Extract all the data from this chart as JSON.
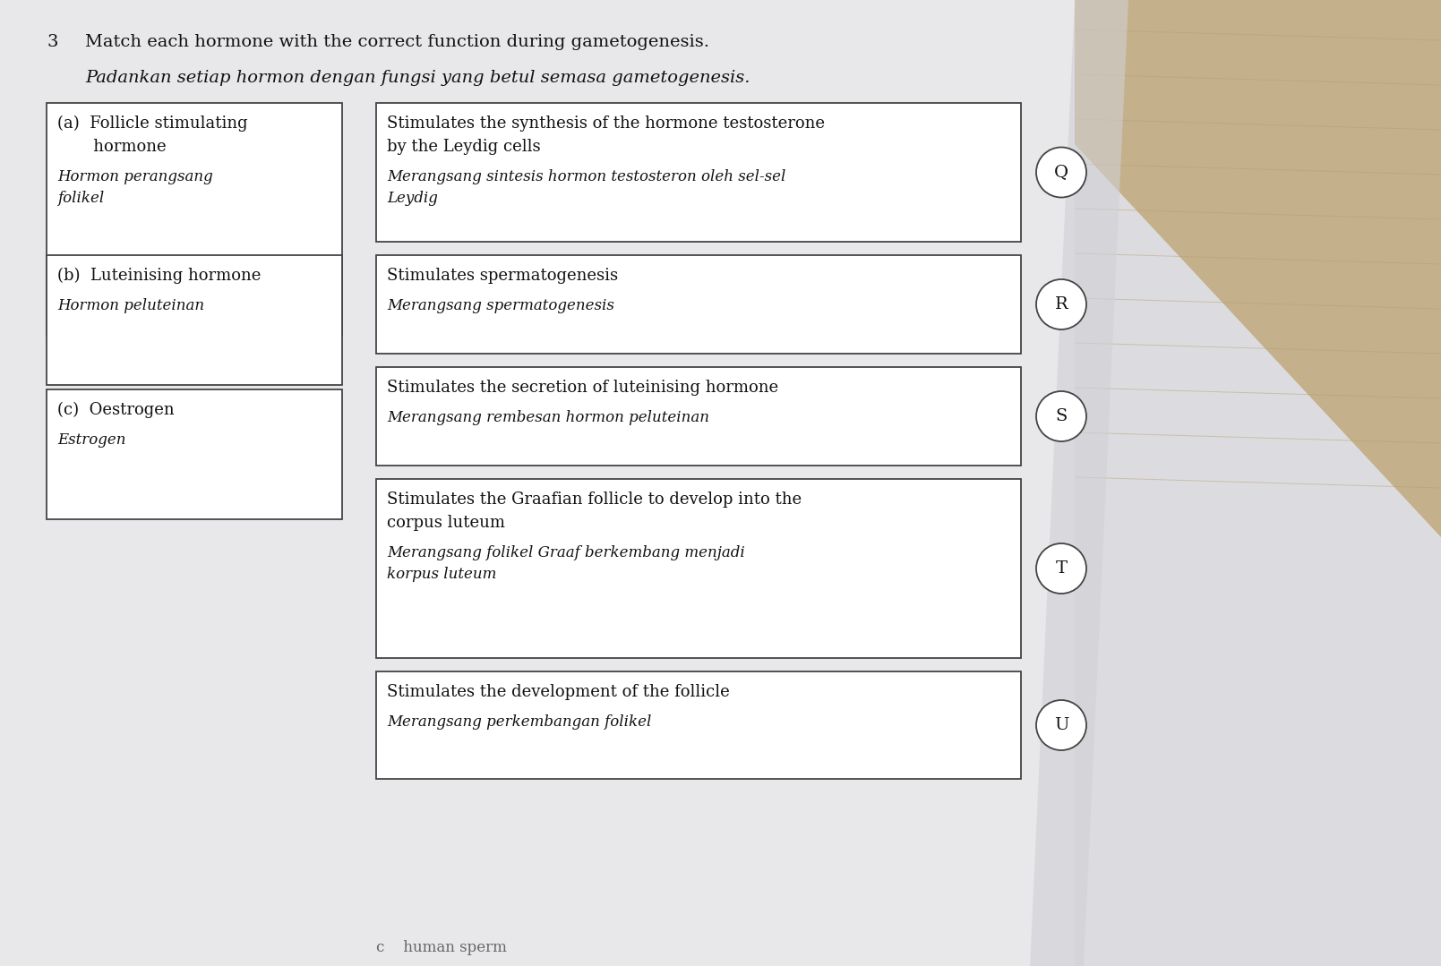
{
  "title_number": "3",
  "title_en": "Match each hormone with the correct function during gametogenesis.",
  "title_my": "Padankan setiap hormon dengan fungsi yang betul semasa gametogenesis.",
  "bg_paper": "#e8e8ec",
  "bg_wood": "#c8b898",
  "box_edge": "#444444",
  "left_boxes": [
    {
      "label_en_lines": [
        "(a)  Follicle stimulating",
        "       hormone"
      ],
      "label_my_lines": [
        "Hormon perangsang",
        "folikel"
      ]
    },
    {
      "label_en_lines": [
        "(b)  Luteinising hormone"
      ],
      "label_my_lines": [
        "Hormon peluteinan"
      ]
    },
    {
      "label_en_lines": [
        "(c)  Oestrogen"
      ],
      "label_my_lines": [
        "Estrogen"
      ]
    }
  ],
  "right_boxes": [
    {
      "text_en_lines": [
        "Stimulates the synthesis of the hormone testosterone",
        "by the Leydig cells"
      ],
      "text_my_lines": [
        "Merangsang sintesis hormon testosteron oleh sel-sel",
        "Leydig"
      ],
      "letter": "Q"
    },
    {
      "text_en_lines": [
        "Stimulates spermatogenesis"
      ],
      "text_my_lines": [
        "Merangsang spermatogenesis"
      ],
      "letter": "R"
    },
    {
      "text_en_lines": [
        "Stimulates the secretion of luteinising hormone"
      ],
      "text_my_lines": [
        "Merangsang rembesan hormon peluteinan"
      ],
      "letter": "S"
    },
    {
      "text_en_lines": [
        "Stimulates the Graafian follicle to develop into the",
        "corpus luteum"
      ],
      "text_my_lines": [
        "Merangsang folikel Graaf berkembang menjadi",
        "korpus luteum"
      ],
      "letter": "T"
    },
    {
      "text_en_lines": [
        "Stimulates the development of the follicle"
      ],
      "text_my_lines": [
        "Merangsang perkembangan folikel"
      ],
      "letter": "U"
    }
  ],
  "font_size_title": 14,
  "font_size_box_en": 13,
  "font_size_box_my": 12,
  "font_size_letter": 14,
  "bottom_text": "c    human sperm"
}
